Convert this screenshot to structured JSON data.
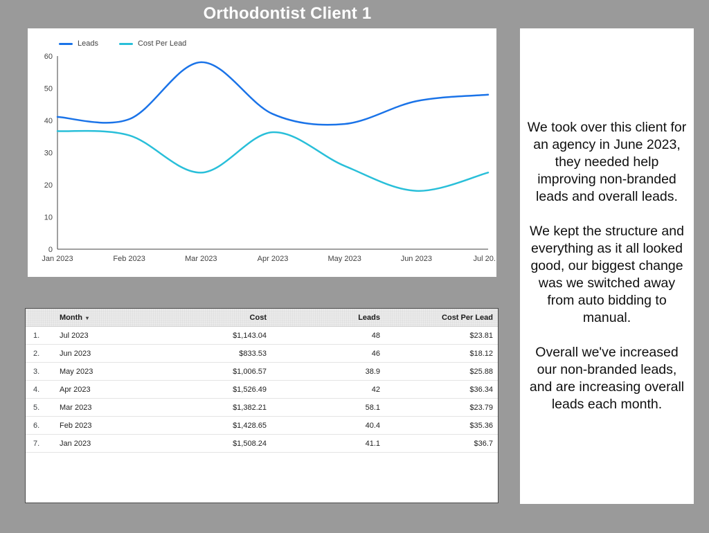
{
  "page": {
    "title": "Orthodontist Client 1",
    "background_color": "#9a9a9a"
  },
  "chart_data": {
    "type": "line",
    "smooth": true,
    "grid": false,
    "legend_position": "top-left",
    "x": [
      "Jan 2023",
      "Feb 2023",
      "Mar 2023",
      "Apr 2023",
      "May 2023",
      "Jun 2023",
      "Jul 2023"
    ],
    "x_tick_labels": [
      "Jan 2023",
      "Feb 2023",
      "Mar 2023",
      "Apr 2023",
      "May 2023",
      "Jun 2023",
      "Jul 20.."
    ],
    "ylim": [
      0,
      60
    ],
    "yticks": [
      0,
      10,
      20,
      30,
      40,
      50,
      60
    ],
    "axis_color": "#424242",
    "series": [
      {
        "name": "Leads",
        "color": "#1a73e8",
        "values": [
          41.1,
          40.4,
          58.1,
          42,
          38.9,
          46,
          48
        ]
      },
      {
        "name": "Cost Per Lead",
        "color": "#29bfd9",
        "values": [
          36.7,
          35.36,
          23.79,
          36.34,
          25.88,
          18.12,
          23.81
        ]
      }
    ]
  },
  "table": {
    "columns": [
      "Month",
      "Cost",
      "Leads",
      "Cost Per Lead"
    ],
    "sort_icon": "▾",
    "rows": [
      [
        "1.",
        "Jul 2023",
        "$1,143.04",
        "48",
        "$23.81"
      ],
      [
        "2.",
        "Jun 2023",
        "$833.53",
        "46",
        "$18.12"
      ],
      [
        "3.",
        "May 2023",
        "$1,006.57",
        "38.9",
        "$25.88"
      ],
      [
        "4.",
        "Apr 2023",
        "$1,526.49",
        "42",
        "$36.34"
      ],
      [
        "5.",
        "Mar 2023",
        "$1,382.21",
        "58.1",
        "$23.79"
      ],
      [
        "6.",
        "Feb 2023",
        "$1,428.65",
        "40.4",
        "$35.36"
      ],
      [
        "7.",
        "Jan 2023",
        "$1,508.24",
        "41.1",
        "$36.7"
      ]
    ]
  },
  "notes": {
    "paragraphs": [
      "We took over this client for an agency in June 2023, they needed help improving non-branded leads and overall leads.",
      "We kept the structure and everything as it all looked good, our biggest change was we switched away from auto bidding to manual.",
      "Overall we've increased our non-branded leads, and are increasing overall leads each month."
    ]
  }
}
